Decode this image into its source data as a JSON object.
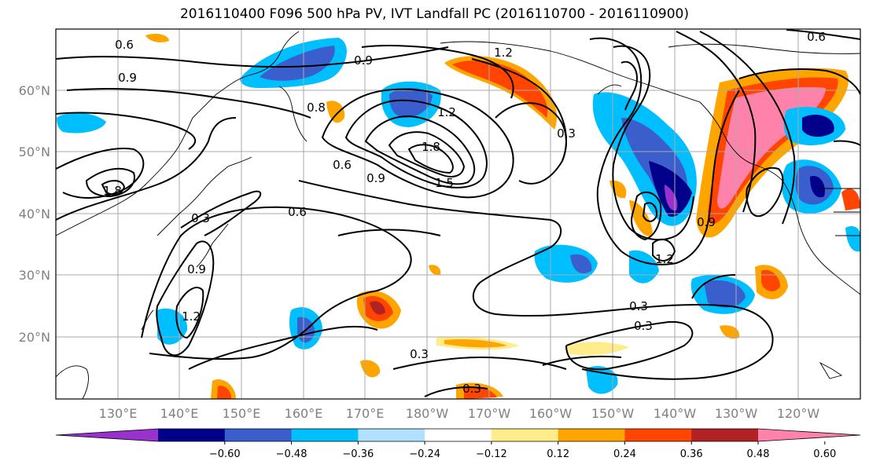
{
  "title": "2016110400 F096 500 hPa PV, IVT Landfall PC (2016110700 - 2016110900)",
  "lat_labels": [
    "60°N",
    "50°N",
    "40°N",
    "30°N",
    "20°N"
  ],
  "lon_labels": [
    "130°E",
    "140°E",
    "150°E",
    "160°E",
    "170°E",
    "180°W",
    "170°W",
    "160°W",
    "150°W",
    "140°W",
    "130°W",
    "120°W"
  ],
  "colorbar": {
    "ticks": [
      "−0.60",
      "−0.48",
      "−0.36",
      "−0.24",
      "−0.12",
      "0.12",
      "0.24",
      "0.36",
      "0.48",
      "0.60"
    ],
    "colors": [
      "#9932CC",
      "#00008B",
      "#3A5FCD",
      "#00BFFF",
      "#B0E2FF",
      "#FFFFFF",
      "#FFEC8B",
      "#FFA500",
      "#FF4500",
      "#B22222",
      "#FF82AB"
    ]
  },
  "contour_labels": [
    {
      "text": "0.6"
    },
    {
      "text": "0.9"
    },
    {
      "text": "0.9"
    },
    {
      "text": "1.2"
    },
    {
      "text": "1.2"
    },
    {
      "text": "1.8"
    },
    {
      "text": "1.5"
    },
    {
      "text": "0.3"
    },
    {
      "text": "0.6"
    },
    {
      "text": "0.9"
    },
    {
      "text": "0.6"
    },
    {
      "text": "0.3"
    },
    {
      "text": "0.9"
    },
    {
      "text": "1.2"
    },
    {
      "text": "0.3"
    },
    {
      "text": "0.3"
    },
    {
      "text": "0.3"
    },
    {
      "text": "0.3"
    },
    {
      "text": "1.2"
    },
    {
      "text": "0.9"
    },
    {
      "text": "0.6"
    },
    {
      "text": "0.8"
    },
    {
      "text": "1.8"
    }
  ]
}
